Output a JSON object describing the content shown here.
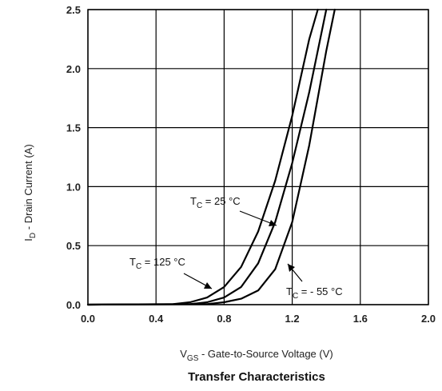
{
  "chart_data": {
    "type": "line",
    "title": "Transfer Characteristics",
    "xlabel": {
      "main": "V",
      "sub": "GS",
      "rest": " - Gate-to-Source Voltage (V)"
    },
    "ylabel": {
      "main": "I",
      "sub": "D",
      "rest": " - Drain Current (A)"
    },
    "xlim": [
      0.0,
      2.0
    ],
    "ylim": [
      0.0,
      2.5
    ],
    "x_ticks": [
      "0.0",
      "0.4",
      "0.8",
      "1.2",
      "1.6",
      "2.0"
    ],
    "y_ticks": [
      "0.0",
      "0.5",
      "1.0",
      "1.5",
      "2.0",
      "2.5"
    ],
    "grid": true,
    "series": [
      {
        "x": [
          0.0,
          0.5,
          0.6,
          0.7,
          0.8,
          0.9,
          1.0,
          1.1,
          1.2,
          1.3,
          1.35
        ],
        "y": [
          0.0,
          0.005,
          0.02,
          0.06,
          0.15,
          0.32,
          0.62,
          1.05,
          1.6,
          2.25,
          2.5
        ]
      },
      {
        "x": [
          0.0,
          0.6,
          0.7,
          0.8,
          0.9,
          1.0,
          1.1,
          1.2,
          1.3,
          1.4
        ],
        "y": [
          0.0,
          0.005,
          0.02,
          0.06,
          0.15,
          0.35,
          0.7,
          1.2,
          1.8,
          2.5
        ]
      },
      {
        "x": [
          0.0,
          0.7,
          0.8,
          0.9,
          1.0,
          1.1,
          1.2,
          1.3,
          1.4,
          1.45
        ],
        "y": [
          0.0,
          0.005,
          0.02,
          0.05,
          0.12,
          0.3,
          0.7,
          1.35,
          2.15,
          2.5
        ]
      }
    ],
    "annotations": [
      {
        "main": "T",
        "sub": "C",
        "rest": " = 25 °C"
      },
      {
        "main": "T",
        "sub": "C",
        "rest": " = 125 °C"
      },
      {
        "main": "T",
        "sub": "C",
        "rest": " = - 55 °C"
      }
    ]
  }
}
